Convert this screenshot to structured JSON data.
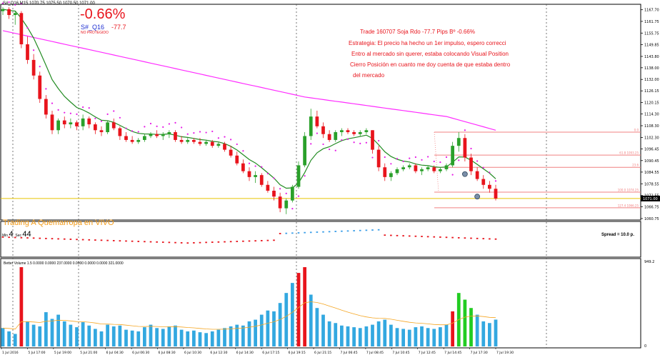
{
  "header": {
    "symbol_line": "S#_Q16,M15  1070.75 1075.50 1070.50 1071.00"
  },
  "trade_box": {
    "percent": "-0.66%",
    "symbol": "S#_Q16",
    "pnl": "-77.7",
    "status": "NO PROTEGIDO"
  },
  "notes": [
    "Trade 160707 Soja Rdo -77.7 Pips Bº -0.66%",
    "Estrategia: El precio ha hecho un 1er impulso, espero correcci",
    "Entro al mercado sin querer, estaba colocando Visual Position",
    "Cierro Posición en cuanto me doy cuenta de que estaba dentro",
    "del mercado"
  ],
  "banner": "Trading A Quemarropa en VIVO",
  "timer": {
    "min_label": "Min",
    "min_value": "4",
    "sec_label": "Sec",
    "sec_value": "44"
  },
  "spread": "Spread = 10.0 p.",
  "indicator_label": "Better Volume 1.5  0.0000  0.0000  237.0000  0.0000  0.0000  0.0000  321.0000",
  "colors": {
    "bull": "#2aa02a",
    "bear": "#e8141c",
    "ma_fast": "#228b22",
    "ma_slow": "#ff2cff",
    "sar": "#e619e6",
    "fib": "#f08080",
    "osc_neg": "#e8141c",
    "osc_pos": "#3a9ee8",
    "vol": "#33a8e0",
    "vol_climax": "#e8141c",
    "vol_green": "#22cc22",
    "vol_avg": "#f5a623"
  },
  "chart_data": {
    "type": "candlestick",
    "price_axis_ticks": [
      "1167.70",
      "1161.75",
      "1155.75",
      "1149.85",
      "1143.80",
      "1138.00",
      "1132.00",
      "1126.15",
      "1120.15",
      "1114.30",
      "1108.30",
      "1102.30",
      "1096.45",
      "1090.45",
      "1084.55",
      "1078.55",
      "1072.55",
      "1066.75",
      "1060.75"
    ],
    "price_range": [
      1060.0,
      1170.5
    ],
    "current_price": "1071.00",
    "time_labels": [
      "1 Jul 2016",
      "5 Jul 17:00",
      "5 Jul 19:00",
      "5 Jul 21:00",
      "6 Jul 04:30",
      "6 Jul 06:30",
      "6 Jul 08:30",
      "6 Jul 10:30",
      "6 Jul 12:30",
      "6 Jul 14:30",
      "6 Jul 17:15",
      "6 Jul 19:15",
      "6 Jul 21:15",
      "7 Jul 06:45",
      "7 Jul 08:45",
      "7 Jul 10:45",
      "7 Jul 12:45",
      "7 Jul 14:45",
      "7 Jul 17:30",
      "7 Jul 19:30"
    ],
    "volume_axis": [
      "949.2",
      "0"
    ],
    "fib_levels": [
      {
        "label": "0.0",
        "price": 1105.0
      },
      {
        "label": "61.8  1093.25",
        "price": 1093.25
      },
      {
        "label": "23.6",
        "price": 1087.0
      },
      {
        "label": "100.0  1074.25",
        "price": 1074.25
      },
      {
        "label": "127.4  1066.25",
        "price": 1066.25
      }
    ],
    "candles": [
      {
        "o": 1167,
        "h": 1169,
        "l": 1165,
        "c": 1168
      },
      {
        "o": 1168,
        "h": 1169,
        "l": 1163,
        "c": 1165
      },
      {
        "o": 1165,
        "h": 1167,
        "l": 1160,
        "c": 1166
      },
      {
        "o": 1166,
        "h": 1167,
        "l": 1148,
        "c": 1150
      },
      {
        "o": 1150,
        "h": 1154,
        "l": 1140,
        "c": 1142
      },
      {
        "o": 1142,
        "h": 1145,
        "l": 1132,
        "c": 1134
      },
      {
        "o": 1134,
        "h": 1136,
        "l": 1120,
        "c": 1122
      },
      {
        "o": 1122,
        "h": 1124,
        "l": 1112,
        "c": 1114
      },
      {
        "o": 1114,
        "h": 1116,
        "l": 1104,
        "c": 1106
      },
      {
        "o": 1106,
        "h": 1112,
        "l": 1104,
        "c": 1111
      },
      {
        "o": 1111,
        "h": 1113,
        "l": 1107,
        "c": 1109
      },
      {
        "o": 1109,
        "h": 1112,
        "l": 1107,
        "c": 1110
      },
      {
        "o": 1110,
        "h": 1111,
        "l": 1106,
        "c": 1108
      },
      {
        "o": 1108,
        "h": 1114,
        "l": 1106,
        "c": 1112
      },
      {
        "o": 1112,
        "h": 1113,
        "l": 1107,
        "c": 1109
      },
      {
        "o": 1109,
        "h": 1110,
        "l": 1104,
        "c": 1106
      },
      {
        "o": 1106,
        "h": 1108,
        "l": 1103,
        "c": 1105
      },
      {
        "o": 1105,
        "h": 1111,
        "l": 1104,
        "c": 1110
      },
      {
        "o": 1110,
        "h": 1112,
        "l": 1106,
        "c": 1107
      },
      {
        "o": 1107,
        "h": 1108,
        "l": 1101,
        "c": 1103
      },
      {
        "o": 1103,
        "h": 1105,
        "l": 1100,
        "c": 1101
      },
      {
        "o": 1101,
        "h": 1103,
        "l": 1099,
        "c": 1100
      },
      {
        "o": 1100,
        "h": 1102,
        "l": 1099,
        "c": 1101
      },
      {
        "o": 1101,
        "h": 1104,
        "l": 1100,
        "c": 1103
      },
      {
        "o": 1103,
        "h": 1105,
        "l": 1102,
        "c": 1104
      },
      {
        "o": 1104,
        "h": 1106,
        "l": 1102,
        "c": 1103
      },
      {
        "o": 1103,
        "h": 1105,
        "l": 1101,
        "c": 1104
      },
      {
        "o": 1104,
        "h": 1106,
        "l": 1102,
        "c": 1105
      },
      {
        "o": 1105,
        "h": 1106,
        "l": 1100,
        "c": 1101
      },
      {
        "o": 1101,
        "h": 1103,
        "l": 1099,
        "c": 1100
      },
      {
        "o": 1100,
        "h": 1102,
        "l": 1099,
        "c": 1101
      },
      {
        "o": 1101,
        "h": 1102,
        "l": 1099,
        "c": 1100
      },
      {
        "o": 1100,
        "h": 1102,
        "l": 1098,
        "c": 1099
      },
      {
        "o": 1099,
        "h": 1101,
        "l": 1098,
        "c": 1100
      },
      {
        "o": 1100,
        "h": 1101,
        "l": 1097,
        "c": 1098
      },
      {
        "o": 1098,
        "h": 1100,
        "l": 1097,
        "c": 1099
      },
      {
        "o": 1099,
        "h": 1100,
        "l": 1095,
        "c": 1096
      },
      {
        "o": 1096,
        "h": 1098,
        "l": 1092,
        "c": 1093
      },
      {
        "o": 1093,
        "h": 1095,
        "l": 1088,
        "c": 1089
      },
      {
        "o": 1089,
        "h": 1091,
        "l": 1084,
        "c": 1085
      },
      {
        "o": 1085,
        "h": 1087,
        "l": 1080,
        "c": 1082
      },
      {
        "o": 1082,
        "h": 1085,
        "l": 1079,
        "c": 1083
      },
      {
        "o": 1083,
        "h": 1084,
        "l": 1077,
        "c": 1078
      },
      {
        "o": 1078,
        "h": 1080,
        "l": 1074,
        "c": 1075
      },
      {
        "o": 1075,
        "h": 1077,
        "l": 1070,
        "c": 1072
      },
      {
        "o": 1072,
        "h": 1074,
        "l": 1064,
        "c": 1066
      },
      {
        "o": 1066,
        "h": 1071,
        "l": 1063,
        "c": 1070
      },
      {
        "o": 1070,
        "h": 1078,
        "l": 1069,
        "c": 1077
      },
      {
        "o": 1077,
        "h": 1090,
        "l": 1076,
        "c": 1088
      },
      {
        "o": 1088,
        "h": 1105,
        "l": 1087,
        "c": 1103
      },
      {
        "o": 1103,
        "h": 1117,
        "l": 1101,
        "c": 1113
      },
      {
        "o": 1113,
        "h": 1116,
        "l": 1107,
        "c": 1108
      },
      {
        "o": 1108,
        "h": 1110,
        "l": 1102,
        "c": 1104
      },
      {
        "o": 1104,
        "h": 1106,
        "l": 1100,
        "c": 1101
      },
      {
        "o": 1101,
        "h": 1106,
        "l": 1100,
        "c": 1105
      },
      {
        "o": 1105,
        "h": 1107,
        "l": 1103,
        "c": 1106
      },
      {
        "o": 1106,
        "h": 1107,
        "l": 1104,
        "c": 1105
      },
      {
        "o": 1105,
        "h": 1106,
        "l": 1103,
        "c": 1104
      },
      {
        "o": 1104,
        "h": 1106,
        "l": 1103,
        "c": 1105
      },
      {
        "o": 1105,
        "h": 1107,
        "l": 1104,
        "c": 1106
      },
      {
        "o": 1106,
        "h": 1106,
        "l": 1094,
        "c": 1096
      },
      {
        "o": 1096,
        "h": 1098,
        "l": 1085,
        "c": 1087
      },
      {
        "o": 1087,
        "h": 1089,
        "l": 1080,
        "c": 1082
      },
      {
        "o": 1082,
        "h": 1085,
        "l": 1080,
        "c": 1084
      },
      {
        "o": 1084,
        "h": 1087,
        "l": 1083,
        "c": 1086
      },
      {
        "o": 1086,
        "h": 1088,
        "l": 1085,
        "c": 1087
      },
      {
        "o": 1087,
        "h": 1089,
        "l": 1086,
        "c": 1088
      },
      {
        "o": 1088,
        "h": 1089,
        "l": 1084,
        "c": 1085
      },
      {
        "o": 1085,
        "h": 1087,
        "l": 1083,
        "c": 1086
      },
      {
        "o": 1086,
        "h": 1088,
        "l": 1085,
        "c": 1087
      },
      {
        "o": 1087,
        "h": 1088,
        "l": 1084,
        "c": 1085
      },
      {
        "o": 1085,
        "h": 1087,
        "l": 1084,
        "c": 1086
      },
      {
        "o": 1086,
        "h": 1089,
        "l": 1085,
        "c": 1088
      },
      {
        "o": 1088,
        "h": 1100,
        "l": 1087,
        "c": 1098
      },
      {
        "o": 1098,
        "h": 1105,
        "l": 1095,
        "c": 1102
      },
      {
        "o": 1102,
        "h": 1104,
        "l": 1090,
        "c": 1092
      },
      {
        "o": 1092,
        "h": 1094,
        "l": 1083,
        "c": 1085
      },
      {
        "o": 1085,
        "h": 1087,
        "l": 1080,
        "c": 1081
      },
      {
        "o": 1081,
        "h": 1083,
        "l": 1076,
        "c": 1078
      },
      {
        "o": 1078,
        "h": 1080,
        "l": 1074,
        "c": 1076
      },
      {
        "o": 1076,
        "h": 1078,
        "l": 1070,
        "c": 1071
      }
    ],
    "volume": [
      220,
      180,
      150,
      949,
      300,
      260,
      240,
      410,
      330,
      380,
      300,
      260,
      230,
      290,
      250,
      210,
      180,
      260,
      240,
      250,
      200,
      190,
      180,
      230,
      260,
      220,
      210,
      240,
      250,
      200,
      180,
      190,
      170,
      160,
      180,
      200,
      220,
      240,
      260,
      250,
      300,
      320,
      380,
      430,
      420,
      520,
      640,
      760,
      880,
      949,
      620,
      460,
      380,
      300,
      280,
      250,
      240,
      230,
      220,
      240,
      260,
      300,
      320,
      260,
      220,
      210,
      200,
      230,
      240,
      220,
      210,
      230,
      260,
      420,
      640,
      560,
      460,
      380,
      300,
      280,
      321
    ],
    "volume_colors": [
      "vol",
      "vol",
      "vol",
      "vol_climax",
      "vol",
      "vol",
      "vol",
      "vol",
      "vol",
      "vol",
      "vol",
      "vol",
      "vol",
      "vol",
      "vol",
      "vol",
      "vol",
      "vol",
      "vol",
      "vol",
      "vol",
      "vol",
      "vol",
      "vol",
      "vol",
      "vol",
      "vol",
      "vol",
      "vol",
      "vol",
      "vol",
      "vol",
      "vol",
      "vol",
      "vol",
      "vol",
      "vol",
      "vol",
      "vol",
      "vol",
      "vol",
      "vol",
      "vol",
      "vol",
      "vol",
      "vol",
      "vol",
      "vol",
      "vol_climax",
      "vol_climax",
      "vol",
      "vol",
      "vol",
      "vol",
      "vol",
      "vol",
      "vol",
      "vol",
      "vol",
      "vol",
      "vol",
      "vol",
      "vol",
      "vol",
      "vol",
      "vol",
      "vol",
      "vol",
      "vol",
      "vol",
      "vol",
      "vol",
      "vol",
      "vol_climax",
      "vol_green",
      "vol_green",
      "vol_green",
      "vol",
      "vol",
      "vol",
      "vol"
    ]
  }
}
